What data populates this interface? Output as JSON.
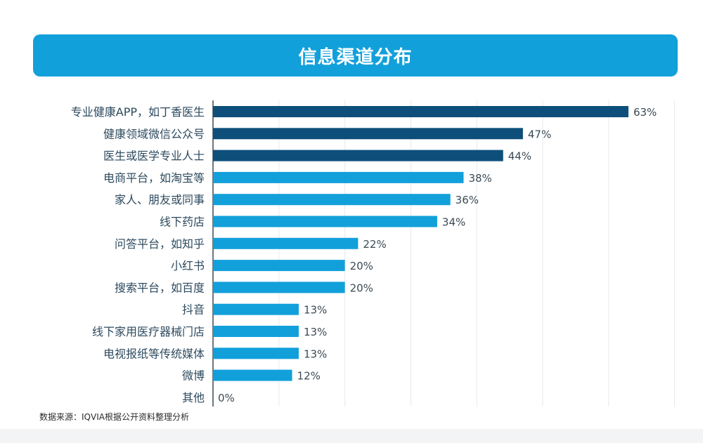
{
  "title": "信息渠道分布",
  "source": "数据来源：IQVIA根据公开资料整理分析",
  "chart_data": {
    "type": "bar",
    "orientation": "horizontal",
    "title": "信息渠道分布",
    "categories": [
      "专业健康APP，如丁香医生",
      "健康领域微信公众号",
      "医生或医学专业人士",
      "电商平台，如淘宝等",
      "家人、朋友或同事",
      "线下药店",
      "问答平台，如知乎",
      "小红书",
      "搜索平台，如百度",
      "抖音",
      "线下家用医疗器械门店",
      "电视报纸等传统媒体",
      "微博",
      "其他"
    ],
    "values": [
      63,
      47,
      44,
      38,
      36,
      34,
      22,
      20,
      20,
      13,
      13,
      13,
      12,
      0
    ],
    "value_labels": [
      "63%",
      "47%",
      "44%",
      "38%",
      "36%",
      "34%",
      "22%",
      "20%",
      "20%",
      "13%",
      "13%",
      "13%",
      "12%",
      "0%"
    ],
    "xlim": [
      0,
      70
    ],
    "grid": true,
    "colors": {
      "top3": "#0d4f7a",
      "others": "#12a0db",
      "grid": "#e6e9ec",
      "axis": "#3b4a55"
    }
  }
}
